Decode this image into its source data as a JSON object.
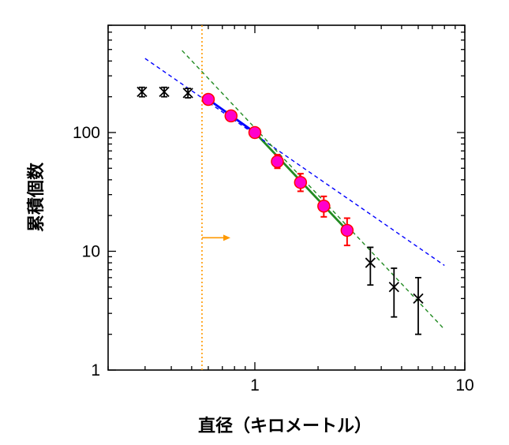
{
  "chart_data": {
    "type": "scatter",
    "xlabel": "直径（キロメートル）",
    "ylabel": "累積個数",
    "xscale": "log",
    "yscale": "log",
    "xlim": [
      0.2,
      10
    ],
    "ylim": [
      1,
      800
    ],
    "x_ticks": [
      1,
      10
    ],
    "x_tick_labels": [
      "1",
      "10"
    ],
    "y_ticks": [
      1,
      10,
      100
    ],
    "y_tick_labels": [
      "1",
      "10",
      "100"
    ],
    "grid": false,
    "series": [
      {
        "marker": "x",
        "color": "#000000",
        "points": [
          {
            "x": 0.29,
            "y": 220,
            "lo": 200,
            "hi": 240
          },
          {
            "x": 0.37,
            "y": 220,
            "lo": 200,
            "hi": 240
          },
          {
            "x": 0.48,
            "y": 215,
            "lo": 196,
            "hi": 235
          }
        ]
      },
      {
        "marker": "circle",
        "color": "#ff00cc",
        "edge_color": "#ff0000",
        "points": [
          {
            "x": 0.6,
            "y": 190,
            "lo": 180,
            "hi": 202
          },
          {
            "x": 0.77,
            "y": 138,
            "lo": 128,
            "hi": 148
          },
          {
            "x": 1.0,
            "y": 100,
            "lo": 92,
            "hi": 108
          },
          {
            "x": 1.28,
            "y": 57,
            "lo": 50,
            "hi": 65
          },
          {
            "x": 1.65,
            "y": 38,
            "lo": 32,
            "hi": 45
          },
          {
            "x": 2.13,
            "y": 24,
            "lo": 19.5,
            "hi": 29
          },
          {
            "x": 2.75,
            "y": 15,
            "lo": 11.2,
            "hi": 19
          }
        ]
      },
      {
        "marker": "x",
        "color": "#000000",
        "points": [
          {
            "x": 3.55,
            "y": 8,
            "lo": 5.2,
            "hi": 10.8
          },
          {
            "x": 4.6,
            "y": 5,
            "lo": 2.8,
            "hi": 7.2
          },
          {
            "x": 6.0,
            "y": 4,
            "lo": 2.0,
            "hi": 6.0
          }
        ]
      }
    ],
    "fit_lines": [
      {
        "color": "#0000ff",
        "style": "solid",
        "x": [
          0.6,
          1.0
        ],
        "y": [
          190,
          100
        ]
      },
      {
        "color": "#228B22",
        "style": "solid",
        "x": [
          1.0,
          2.75
        ],
        "y": [
          100,
          15
        ]
      },
      {
        "color": "#0000ff",
        "style": "dashed",
        "x": [
          0.3,
          8.0
        ],
        "y": [
          420,
          7.6
        ]
      },
      {
        "color": "#228B22",
        "style": "dashed",
        "x": [
          0.45,
          8.0
        ],
        "y": [
          490,
          2.2
        ]
      }
    ],
    "threshold": {
      "x": 0.56,
      "color": "#ff9900",
      "style": "dotted",
      "arrow_y": 13,
      "arrow_direction": "right"
    }
  }
}
